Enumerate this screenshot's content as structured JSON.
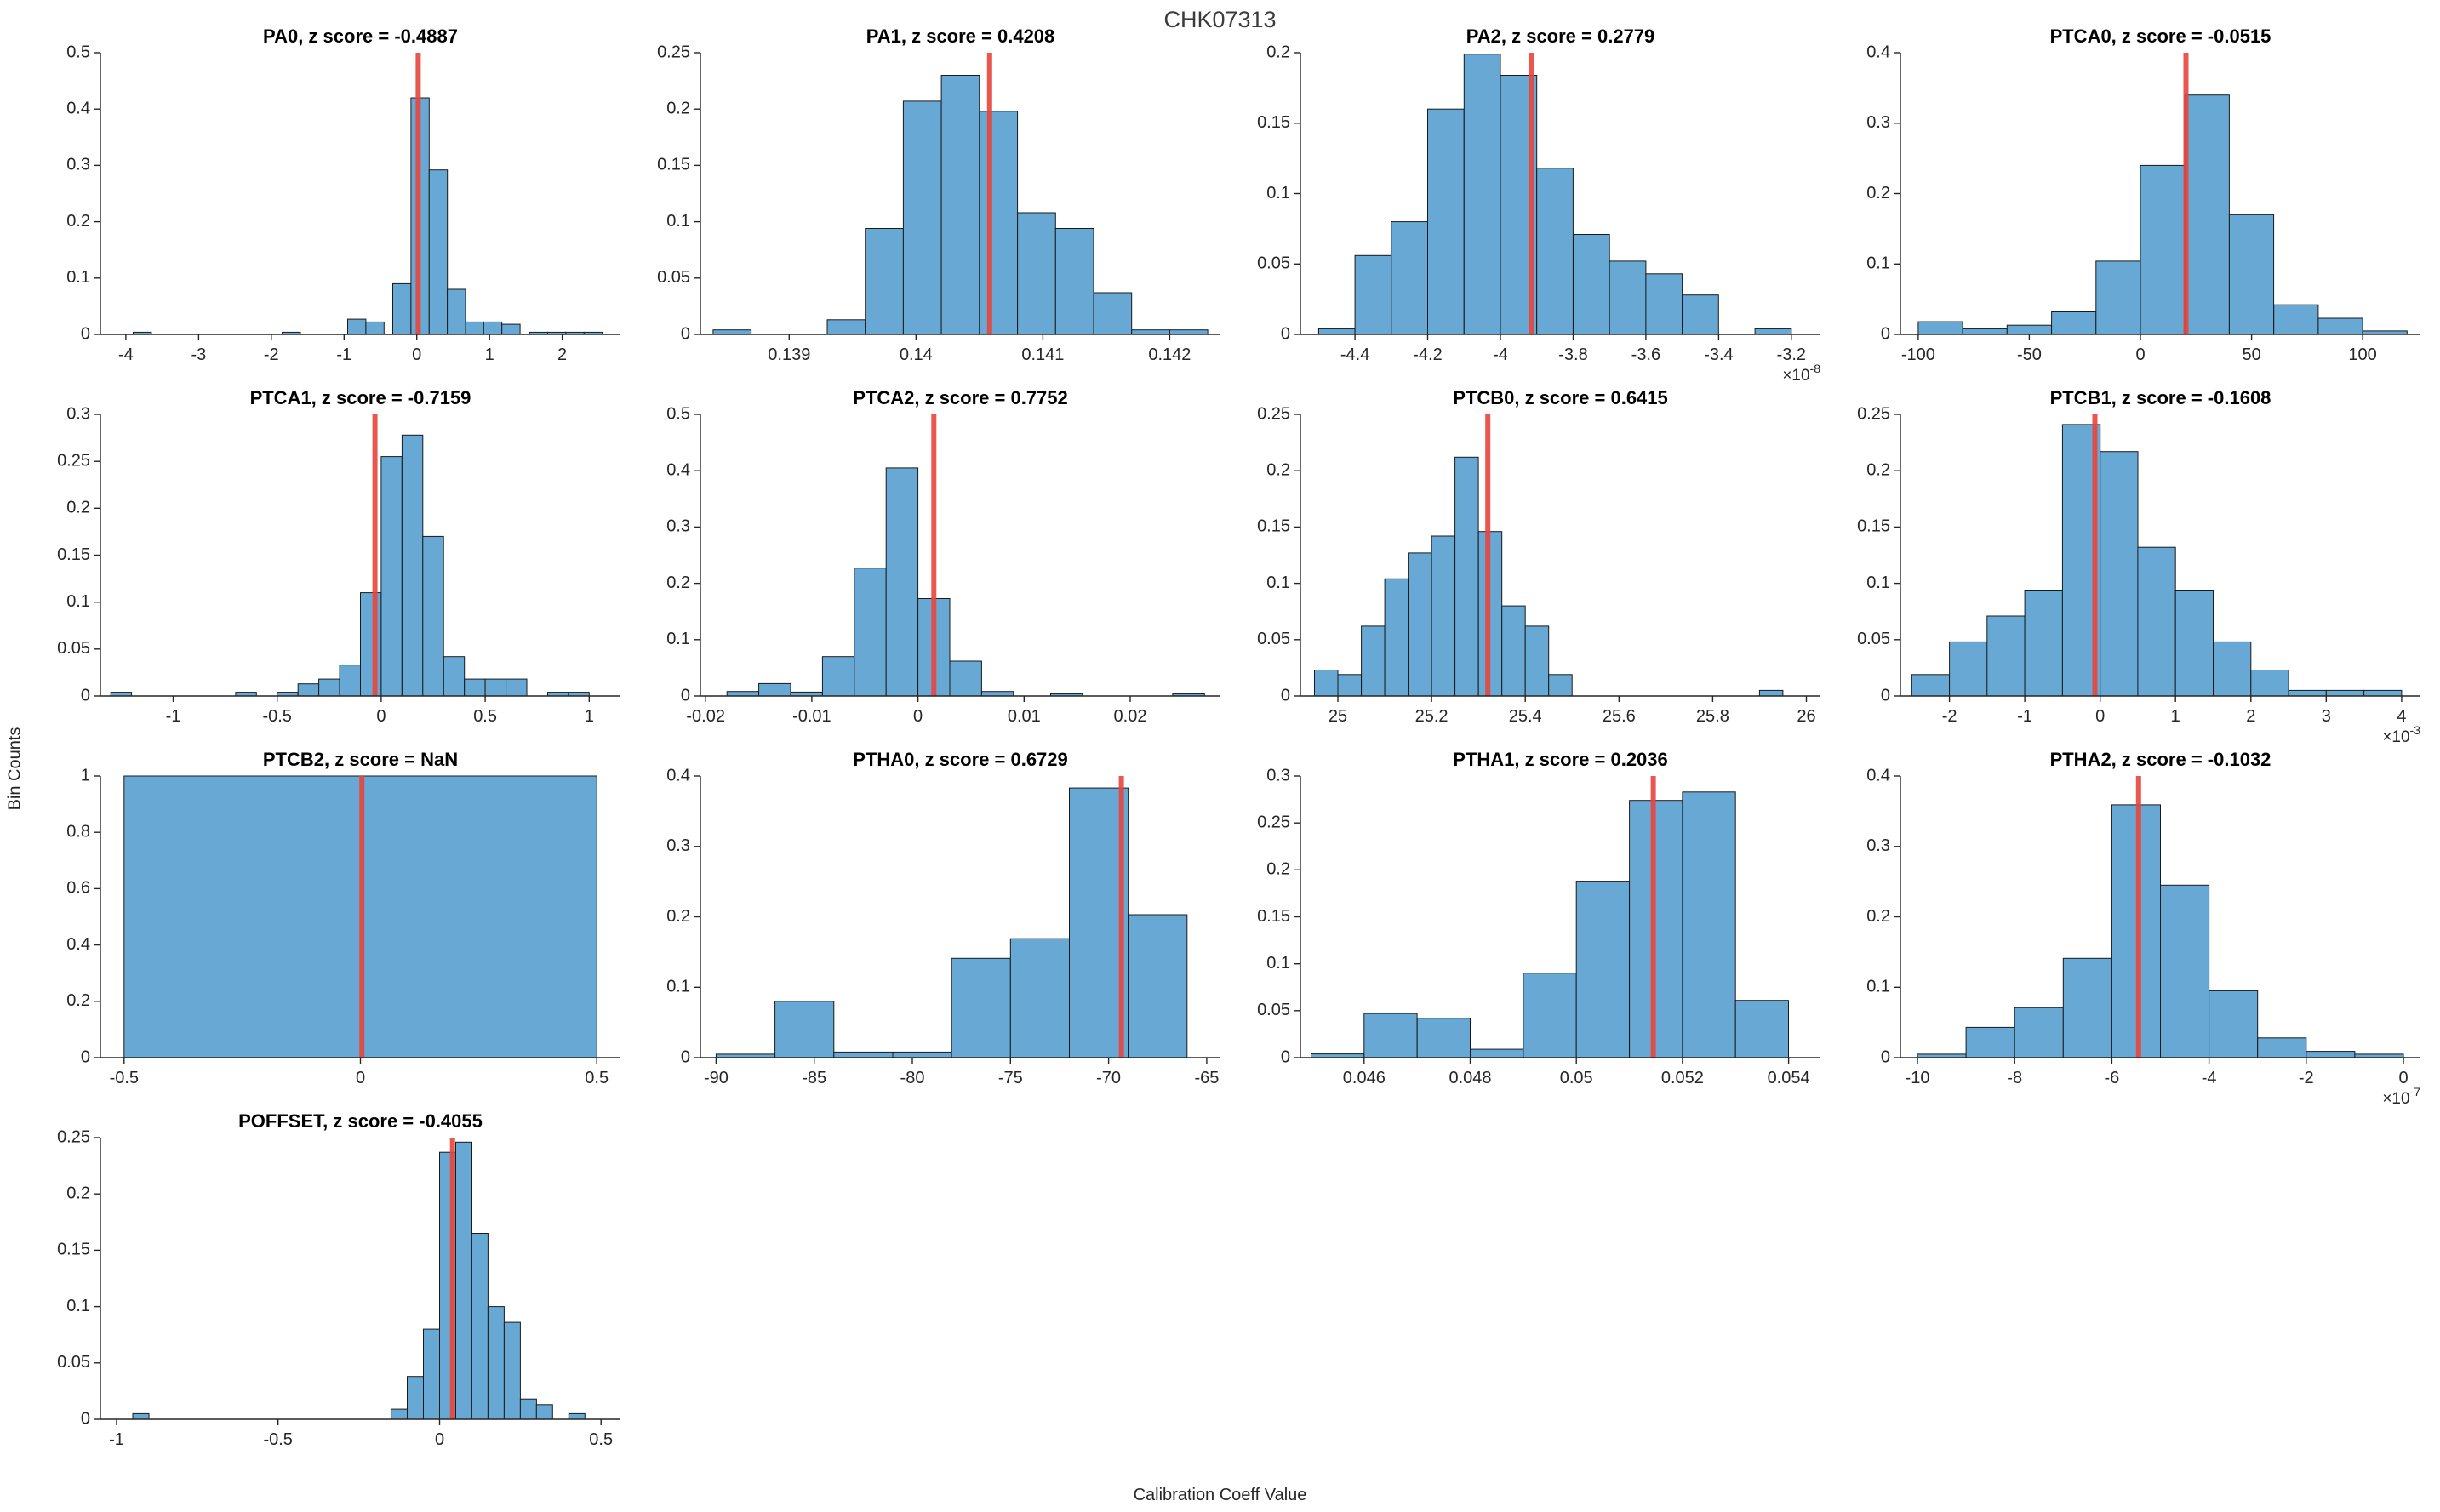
{
  "figure": {
    "title": "CHK07313",
    "ylabel": "Bin Counts",
    "xlabel": "Calibration Coeff Value"
  },
  "colors": {
    "bar_fill": "#67a9d4",
    "bar_edge": "#1a1a1a",
    "marker": "#e8453c",
    "axis": "#262626",
    "text": "#262626",
    "subplot_title": "#000000",
    "figure_title": "#3b3b3b"
  },
  "chart_data": [
    {
      "type": "bar",
      "name": "PA0",
      "z_score": "-0.4887",
      "title": "PA0, z score = -0.4887",
      "xlim": [
        -4.35,
        2.8
      ],
      "ylim": [
        0,
        0.5
      ],
      "xticks": [
        -4,
        -3,
        -2,
        -1,
        0,
        1,
        2
      ],
      "xtick_labels": [
        "-4",
        "-3",
        "-2",
        "-1",
        "0",
        "1",
        "2"
      ],
      "yticks": [
        0,
        0.1,
        0.2,
        0.3,
        0.4,
        0.5
      ],
      "ytick_labels": [
        "0",
        "0.1",
        "0.2",
        "0.3",
        "0.4",
        "0.5"
      ],
      "exponent": null,
      "marker_x": 0.02,
      "bins": [
        [
          -3.9,
          -3.65,
          0.004
        ],
        [
          -1.85,
          -1.6,
          0.004
        ],
        [
          -0.95,
          -0.7,
          0.027
        ],
        [
          -0.7,
          -0.45,
          0.022
        ],
        [
          -0.33,
          -0.08,
          0.09
        ],
        [
          -0.08,
          0.17,
          0.42
        ],
        [
          0.17,
          0.42,
          0.292
        ],
        [
          0.42,
          0.67,
          0.08
        ],
        [
          0.67,
          0.92,
          0.022
        ],
        [
          0.92,
          1.17,
          0.022
        ],
        [
          1.17,
          1.42,
          0.018
        ],
        [
          1.55,
          1.8,
          0.004
        ],
        [
          1.8,
          2.05,
          0.004
        ],
        [
          2.05,
          2.3,
          0.004
        ],
        [
          2.3,
          2.55,
          0.004
        ]
      ]
    },
    {
      "type": "bar",
      "name": "PA1",
      "z_score": "0.4208",
      "title": "PA1, z score = 0.4208",
      "xlim": [
        0.1383,
        0.1424
      ],
      "ylim": [
        0,
        0.25
      ],
      "xticks": [
        0.139,
        0.14,
        0.141,
        0.142
      ],
      "xtick_labels": [
        "0.139",
        "0.14",
        "0.141",
        "0.142"
      ],
      "yticks": [
        0,
        0.05,
        0.1,
        0.15,
        0.2,
        0.25
      ],
      "ytick_labels": [
        "0",
        "0.05",
        "0.1",
        "0.15",
        "0.2",
        "0.25"
      ],
      "exponent": null,
      "marker_x": 0.14058,
      "bins": [
        [
          0.1384,
          0.1387,
          0.004
        ],
        [
          0.1393,
          0.1396,
          0.013
        ],
        [
          0.1396,
          0.1399,
          0.094
        ],
        [
          0.1399,
          0.1402,
          0.207
        ],
        [
          0.1402,
          0.1405,
          0.23
        ],
        [
          0.1405,
          0.1408,
          0.198
        ],
        [
          0.1408,
          0.1411,
          0.108
        ],
        [
          0.1411,
          0.1414,
          0.094
        ],
        [
          0.1414,
          0.1417,
          0.037
        ],
        [
          0.1417,
          0.142,
          0.004
        ],
        [
          0.142,
          0.1423,
          0.004
        ]
      ]
    },
    {
      "type": "bar",
      "name": "PA2",
      "z_score": "0.2779",
      "title": "PA2, z score = 0.2779",
      "xlim": [
        -4.55,
        -3.12
      ],
      "ylim": [
        0,
        0.2
      ],
      "xticks": [
        -4.4,
        -4.2,
        -4,
        -3.8,
        -3.6,
        -3.4,
        -3.2
      ],
      "xtick_labels": [
        "-4.4",
        "-4.2",
        "-4",
        "-3.8",
        "-3.6",
        "-3.4",
        "-3.2"
      ],
      "yticks": [
        0,
        0.05,
        0.1,
        0.15,
        0.2
      ],
      "ytick_labels": [
        "0",
        "0.05",
        "0.1",
        "0.15",
        "0.2"
      ],
      "exponent": "-8",
      "marker_x": -3.915,
      "bins": [
        [
          -4.5,
          -4.4,
          0.004
        ],
        [
          -4.4,
          -4.3,
          0.056
        ],
        [
          -4.3,
          -4.2,
          0.08
        ],
        [
          -4.2,
          -4.1,
          0.16
        ],
        [
          -4.1,
          -4.0,
          0.199
        ],
        [
          -4.0,
          -3.9,
          0.184
        ],
        [
          -3.9,
          -3.8,
          0.118
        ],
        [
          -3.8,
          -3.7,
          0.071
        ],
        [
          -3.7,
          -3.6,
          0.052
        ],
        [
          -3.6,
          -3.5,
          0.043
        ],
        [
          -3.5,
          -3.4,
          0.028
        ],
        [
          -3.3,
          -3.2,
          0.004
        ]
      ]
    },
    {
      "type": "bar",
      "name": "PTCA0",
      "z_score": "-0.0515",
      "title": "PTCA0, z score = -0.0515",
      "xlim": [
        -108,
        126
      ],
      "ylim": [
        0,
        0.4
      ],
      "xticks": [
        -100,
        -50,
        0,
        50,
        100
      ],
      "xtick_labels": [
        "-100",
        "-50",
        "0",
        "50",
        "100"
      ],
      "yticks": [
        0,
        0.1,
        0.2,
        0.3,
        0.4
      ],
      "ytick_labels": [
        "0",
        "0.1",
        "0.2",
        "0.3",
        "0.4"
      ],
      "exponent": null,
      "marker_x": 20.5,
      "bins": [
        [
          -100,
          -80,
          0.018
        ],
        [
          -80,
          -60,
          0.008
        ],
        [
          -60,
          -40,
          0.013
        ],
        [
          -40,
          -20,
          0.032
        ],
        [
          -20,
          0,
          0.104
        ],
        [
          0,
          20,
          0.24
        ],
        [
          20,
          40,
          0.34
        ],
        [
          40,
          60,
          0.17
        ],
        [
          60,
          80,
          0.042
        ],
        [
          80,
          100,
          0.023
        ],
        [
          100,
          120,
          0.005
        ]
      ]
    },
    {
      "type": "bar",
      "name": "PTCA1",
      "z_score": "-0.7159",
      "title": "PTCA1, z score = -0.7159",
      "xlim": [
        -1.35,
        1.15
      ],
      "ylim": [
        0,
        0.3
      ],
      "xticks": [
        -1,
        -0.5,
        0,
        0.5,
        1
      ],
      "xtick_labels": [
        "-1",
        "-0.5",
        "0",
        "0.5",
        "1"
      ],
      "yticks": [
        0,
        0.05,
        0.1,
        0.15,
        0.2,
        0.25,
        0.3
      ],
      "ytick_labels": [
        "0",
        "0.05",
        "0.1",
        "0.15",
        "0.2",
        "0.25",
        "0.3"
      ],
      "exponent": null,
      "marker_x": -0.03,
      "bins": [
        [
          -1.3,
          -1.2,
          0.004
        ],
        [
          -0.7,
          -0.6,
          0.004
        ],
        [
          -0.5,
          -0.4,
          0.004
        ],
        [
          -0.4,
          -0.3,
          0.013
        ],
        [
          -0.3,
          -0.2,
          0.018
        ],
        [
          -0.2,
          -0.1,
          0.033
        ],
        [
          -0.1,
          0,
          0.11
        ],
        [
          0,
          0.1,
          0.255
        ],
        [
          0.1,
          0.2,
          0.278
        ],
        [
          0.2,
          0.3,
          0.17
        ],
        [
          0.3,
          0.4,
          0.042
        ],
        [
          0.4,
          0.5,
          0.018
        ],
        [
          0.5,
          0.6,
          0.018
        ],
        [
          0.6,
          0.7,
          0.018
        ],
        [
          0.8,
          0.9,
          0.004
        ],
        [
          0.9,
          1.0,
          0.004
        ]
      ]
    },
    {
      "type": "bar",
      "name": "PTCA2",
      "z_score": "0.7752",
      "title": "PTCA2, z score = 0.7752",
      "xlim": [
        -0.0205,
        0.0285
      ],
      "ylim": [
        0,
        0.5
      ],
      "xticks": [
        -0.02,
        -0.01,
        0,
        0.01,
        0.02
      ],
      "xtick_labels": [
        "-0.02",
        "-0.01",
        "0",
        "0.01",
        "0.02"
      ],
      "yticks": [
        0,
        0.1,
        0.2,
        0.3,
        0.4,
        0.5
      ],
      "ytick_labels": [
        "0",
        "0.1",
        "0.2",
        "0.3",
        "0.4",
        "0.5"
      ],
      "exponent": null,
      "marker_x": 0.0015,
      "bins": [
        [
          -0.018,
          -0.015,
          0.008
        ],
        [
          -0.015,
          -0.012,
          0.022
        ],
        [
          -0.012,
          -0.009,
          0.007
        ],
        [
          -0.009,
          -0.006,
          0.07
        ],
        [
          -0.006,
          -0.003,
          0.227
        ],
        [
          -0.003,
          0,
          0.405
        ],
        [
          0,
          0.003,
          0.173
        ],
        [
          0.003,
          0.006,
          0.062
        ],
        [
          0.006,
          0.009,
          0.008
        ],
        [
          0.0125,
          0.0155,
          0.004
        ],
        [
          0.024,
          0.027,
          0.004
        ]
      ]
    },
    {
      "type": "bar",
      "name": "PTCB0",
      "z_score": "0.6415",
      "title": "PTCB0, z score = 0.6415",
      "xlim": [
        24.92,
        26.03
      ],
      "ylim": [
        0,
        0.25
      ],
      "xticks": [
        25,
        25.2,
        25.4,
        25.6,
        25.8,
        26
      ],
      "xtick_labels": [
        "25",
        "25.2",
        "25.4",
        "25.6",
        "25.8",
        "26"
      ],
      "yticks": [
        0,
        0.05,
        0.1,
        0.15,
        0.2,
        0.25
      ],
      "ytick_labels": [
        "0",
        "0.05",
        "0.1",
        "0.15",
        "0.2",
        "0.25"
      ],
      "exponent": null,
      "marker_x": 25.32,
      "bins": [
        [
          24.95,
          25.0,
          0.023
        ],
        [
          25.0,
          25.05,
          0.019
        ],
        [
          25.05,
          25.1,
          0.062
        ],
        [
          25.1,
          25.15,
          0.104
        ],
        [
          25.15,
          25.2,
          0.127
        ],
        [
          25.2,
          25.25,
          0.142
        ],
        [
          25.25,
          25.3,
          0.212
        ],
        [
          25.3,
          25.35,
          0.146
        ],
        [
          25.35,
          25.4,
          0.08
        ],
        [
          25.4,
          25.45,
          0.062
        ],
        [
          25.45,
          25.5,
          0.019
        ],
        [
          25.9,
          25.95,
          0.005
        ]
      ]
    },
    {
      "type": "bar",
      "name": "PTCB1",
      "z_score": "-0.1608",
      "title": "PTCB1, z score = -0.1608",
      "xlim": [
        -2.65,
        4.25
      ],
      "ylim": [
        0,
        0.25
      ],
      "xticks": [
        -2,
        -1,
        0,
        1,
        2,
        3,
        4
      ],
      "xtick_labels": [
        "-2",
        "-1",
        "0",
        "1",
        "2",
        "3",
        "4"
      ],
      "yticks": [
        0,
        0.05,
        0.1,
        0.15,
        0.2,
        0.25
      ],
      "ytick_labels": [
        "0",
        "0.05",
        "0.1",
        "0.15",
        "0.2",
        "0.25"
      ],
      "exponent": "-3",
      "marker_x": -0.07,
      "bins": [
        [
          -2.5,
          -2,
          0.019
        ],
        [
          -2,
          -1.5,
          0.048
        ],
        [
          -1.5,
          -1,
          0.071
        ],
        [
          -1,
          -0.5,
          0.094
        ],
        [
          -0.5,
          0,
          0.241
        ],
        [
          0,
          0.5,
          0.217
        ],
        [
          0.5,
          1,
          0.132
        ],
        [
          1,
          1.5,
          0.094
        ],
        [
          1.5,
          2,
          0.048
        ],
        [
          2,
          2.5,
          0.023
        ],
        [
          2.5,
          3,
          0.005
        ],
        [
          3,
          3.5,
          0.005
        ],
        [
          3.5,
          4,
          0.005
        ]
      ]
    },
    {
      "type": "bar",
      "name": "PTCB2",
      "z_score": "NaN",
      "title": "PTCB2, z score = NaN",
      "xlim": [
        -0.55,
        0.55
      ],
      "ylim": [
        0,
        1
      ],
      "xticks": [
        -0.5,
        0,
        0.5
      ],
      "xtick_labels": [
        "-0.5",
        "0",
        "0.5"
      ],
      "yticks": [
        0,
        0.2,
        0.4,
        0.6,
        0.8,
        1
      ],
      "ytick_labels": [
        "0",
        "0.2",
        "0.4",
        "0.6",
        "0.8",
        "1"
      ],
      "exponent": null,
      "marker_x": 0.003,
      "bins": [
        [
          -0.5,
          0.5,
          1
        ]
      ]
    },
    {
      "type": "bar",
      "name": "PTHA0",
      "z_score": "0.6729",
      "title": "PTHA0, z score = 0.6729",
      "xlim": [
        -90.8,
        -64.3
      ],
      "ylim": [
        0,
        0.4
      ],
      "xticks": [
        -90,
        -85,
        -80,
        -75,
        -70,
        -65
      ],
      "xtick_labels": [
        "-90",
        "-85",
        "-80",
        "-75",
        "-70",
        "-65"
      ],
      "yticks": [
        0,
        0.1,
        0.2,
        0.3,
        0.4
      ],
      "ytick_labels": [
        "0",
        "0.1",
        "0.2",
        "0.3",
        "0.4"
      ],
      "exponent": null,
      "marker_x": -69.35,
      "bins": [
        [
          -90,
          -87,
          0.005
        ],
        [
          -87,
          -84,
          0.08
        ],
        [
          -84,
          -81,
          0.008
        ],
        [
          -81,
          -78,
          0.008
        ],
        [
          -78,
          -75,
          0.141
        ],
        [
          -75,
          -72,
          0.169
        ],
        [
          -72,
          -69,
          0.383
        ],
        [
          -69,
          -66,
          0.203
        ]
      ]
    },
    {
      "type": "bar",
      "name": "PTHA1",
      "z_score": "0.2036",
      "title": "PTHA1, z score = 0.2036",
      "xlim": [
        0.0448,
        0.0546
      ],
      "ylim": [
        0,
        0.3
      ],
      "xticks": [
        0.046,
        0.048,
        0.05,
        0.052,
        0.054
      ],
      "xtick_labels": [
        "0.046",
        "0.048",
        "0.05",
        "0.052",
        "0.054"
      ],
      "yticks": [
        0,
        0.05,
        0.1,
        0.15,
        0.2,
        0.25,
        0.3
      ],
      "ytick_labels": [
        "0",
        "0.05",
        "0.1",
        "0.15",
        "0.2",
        "0.25",
        "0.3"
      ],
      "exponent": null,
      "marker_x": 0.05145,
      "bins": [
        [
          0.045,
          0.046,
          0.004
        ],
        [
          0.046,
          0.047,
          0.047
        ],
        [
          0.047,
          0.048,
          0.042
        ],
        [
          0.048,
          0.049,
          0.009
        ],
        [
          0.049,
          0.05,
          0.09
        ],
        [
          0.05,
          0.051,
          0.188
        ],
        [
          0.051,
          0.052,
          0.274
        ],
        [
          0.052,
          0.053,
          0.283
        ],
        [
          0.053,
          0.054,
          0.061
        ]
      ]
    },
    {
      "type": "bar",
      "name": "PTHA2",
      "z_score": "-0.1032",
      "title": "PTHA2, z score = -0.1032",
      "xlim": [
        -10.35,
        0.35
      ],
      "ylim": [
        0,
        0.4
      ],
      "xticks": [
        -10,
        -8,
        -6,
        -4,
        -2,
        0
      ],
      "xtick_labels": [
        "-10",
        "-8",
        "-6",
        "-4",
        "-2",
        "0"
      ],
      "yticks": [
        0,
        0.1,
        0.2,
        0.3,
        0.4
      ],
      "ytick_labels": [
        "0",
        "0.1",
        "0.2",
        "0.3",
        "0.4"
      ],
      "exponent": "-7",
      "marker_x": -5.45,
      "bins": [
        [
          -10,
          -9,
          0.005
        ],
        [
          -9,
          -8,
          0.043
        ],
        [
          -8,
          -7,
          0.071
        ],
        [
          -7,
          -6,
          0.141
        ],
        [
          -6,
          -5,
          0.359
        ],
        [
          -5,
          -4,
          0.245
        ],
        [
          -4,
          -3,
          0.095
        ],
        [
          -3,
          -2,
          0.028
        ],
        [
          -2,
          -1,
          0.009
        ],
        [
          -1,
          0,
          0.005
        ]
      ]
    },
    {
      "type": "bar",
      "name": "POFFSET",
      "z_score": "-0.4055",
      "title": "POFFSET, z score = -0.4055",
      "xlim": [
        -1.05,
        0.56
      ],
      "ylim": [
        0,
        0.25
      ],
      "xticks": [
        -1,
        -0.5,
        0,
        0.5
      ],
      "xtick_labels": [
        "-1",
        "-0.5",
        "0",
        "0.5"
      ],
      "yticks": [
        0,
        0.05,
        0.1,
        0.15,
        0.2,
        0.25
      ],
      "ytick_labels": [
        "0",
        "0.05",
        "0.1",
        "0.15",
        "0.2",
        "0.25"
      ],
      "exponent": null,
      "marker_x": 0.04,
      "bins": [
        [
          -0.95,
          -0.9,
          0.005
        ],
        [
          -0.15,
          -0.1,
          0.009
        ],
        [
          -0.1,
          -0.05,
          0.038
        ],
        [
          -0.05,
          0,
          0.08
        ],
        [
          0,
          0.05,
          0.237
        ],
        [
          0.05,
          0.1,
          0.246
        ],
        [
          0.1,
          0.15,
          0.165
        ],
        [
          0.15,
          0.2,
          0.1
        ],
        [
          0.2,
          0.25,
          0.086
        ],
        [
          0.25,
          0.3,
          0.018
        ],
        [
          0.3,
          0.35,
          0.013
        ],
        [
          0.4,
          0.45,
          0.005
        ]
      ]
    }
  ]
}
